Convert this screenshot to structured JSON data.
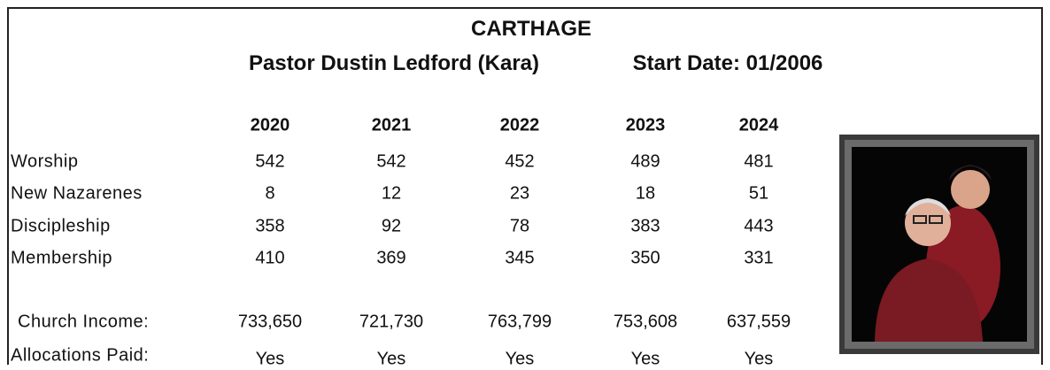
{
  "header": {
    "title": "CARTHAGE",
    "pastor": "Pastor Dustin Ledford (Kara)",
    "start_date": "Start Date: 01/2006"
  },
  "table": {
    "years": [
      "2020",
      "2021",
      "2022",
      "2023",
      "2024"
    ],
    "rows": [
      {
        "label": "Worship",
        "values": [
          "542",
          "542",
          "452",
          "489",
          "481"
        ]
      },
      {
        "label": "New Nazarenes",
        "values": [
          "8",
          "12",
          "23",
          "18",
          "51"
        ]
      },
      {
        "label": "Discipleship",
        "values": [
          "358",
          "92",
          "78",
          "383",
          "443"
        ]
      },
      {
        "label": "Membership",
        "values": [
          "410",
          "369",
          "345",
          "350",
          "331"
        ]
      },
      {
        "label": "Church Income:",
        "values": [
          "733,650",
          "721,730",
          "763,799",
          "753,608",
          "637,559"
        ]
      },
      {
        "label": "Allocations Paid:",
        "values": [
          "Yes",
          "Yes",
          "Yes",
          "Yes",
          "Yes"
        ]
      }
    ]
  }
}
